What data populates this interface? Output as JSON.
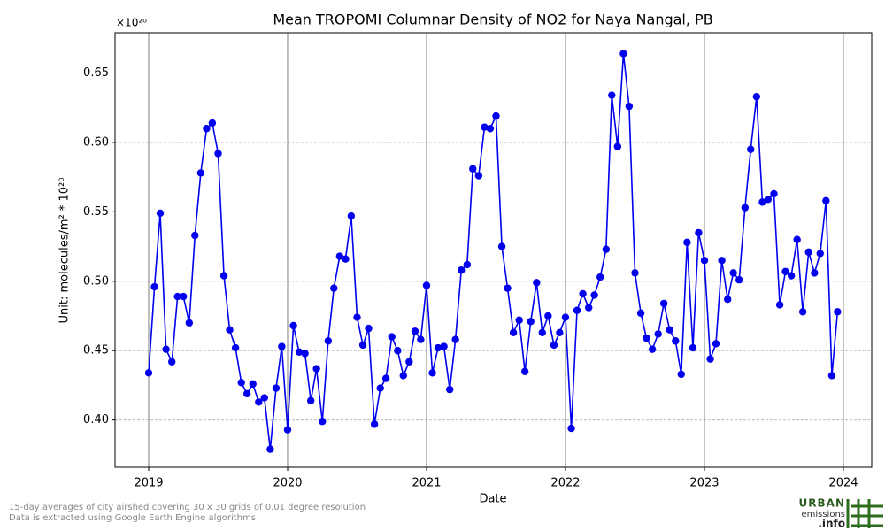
{
  "chart_data": {
    "type": "line",
    "title": "Mean TROPOMI Columnar Density of NO2 for Naya Nangal, PB",
    "x_label": "Date",
    "y_label": "Unit: molecules/m² * 10²⁰",
    "offset_label": "×10²⁰",
    "color": "#0000ee",
    "grid": true,
    "xlim": [
      2018.758,
      2024.204
    ],
    "ylim": [
      0.366,
      0.679
    ],
    "xticks": [
      2019,
      2020,
      2021,
      2022,
      2023,
      2024
    ],
    "yticks": [
      {
        "value": 0.4,
        "label": "0.40"
      },
      {
        "value": 0.45,
        "label": "0.45"
      },
      {
        "value": 0.5,
        "label": "0.50"
      },
      {
        "value": 0.55,
        "label": "0.55"
      },
      {
        "value": 0.6,
        "label": "0.60"
      },
      {
        "value": 0.65,
        "label": "0.65"
      }
    ],
    "x": [
      2019,
      2019.042,
      2019.083,
      2019.125,
      2019.167,
      2019.208,
      2019.25,
      2019.292,
      2019.333,
      2019.375,
      2019.417,
      2019.458,
      2019.5,
      2019.542,
      2019.583,
      2019.625,
      2019.667,
      2019.708,
      2019.75,
      2019.792,
      2019.833,
      2019.875,
      2019.917,
      2019.958,
      2020,
      2020.042,
      2020.083,
      2020.125,
      2020.167,
      2020.208,
      2020.25,
      2020.292,
      2020.333,
      2020.375,
      2020.417,
      2020.458,
      2020.5,
      2020.542,
      2020.583,
      2020.625,
      2020.667,
      2020.708,
      2020.75,
      2020.792,
      2020.833,
      2020.875,
      2020.917,
      2020.958,
      2021,
      2021.042,
      2021.083,
      2021.125,
      2021.167,
      2021.208,
      2021.25,
      2021.292,
      2021.333,
      2021.375,
      2021.417,
      2021.458,
      2021.5,
      2021.542,
      2021.583,
      2021.625,
      2021.667,
      2021.708,
      2021.75,
      2021.792,
      2021.833,
      2021.875,
      2021.917,
      2021.958,
      2022,
      2022.042,
      2022.083,
      2022.125,
      2022.167,
      2022.208,
      2022.25,
      2022.292,
      2022.333,
      2022.375,
      2022.417,
      2022.458,
      2022.5,
      2022.542,
      2022.583,
      2022.625,
      2022.667,
      2022.708,
      2022.75,
      2022.792,
      2022.833,
      2022.875,
      2022.917,
      2022.958,
      2023,
      2023.042,
      2023.083,
      2023.125,
      2023.167,
      2023.208,
      2023.25,
      2023.292,
      2023.333,
      2023.375,
      2023.417,
      2023.458,
      2023.5,
      2023.542,
      2023.583,
      2023.625,
      2023.667,
      2023.708,
      2023.75,
      2023.792,
      2023.833,
      2023.875,
      2023.917,
      2023.958
    ],
    "values": [
      0.434,
      0.496,
      0.549,
      0.451,
      0.442,
      0.489,
      0.489,
      0.47,
      0.533,
      0.578,
      0.61,
      0.614,
      0.592,
      0.504,
      0.465,
      0.452,
      0.427,
      0.419,
      0.426,
      0.413,
      0.416,
      0.379,
      0.423,
      0.453,
      0.393,
      0.468,
      0.449,
      0.448,
      0.414,
      0.437,
      0.399,
      0.457,
      0.495,
      0.518,
      0.516,
      0.547,
      0.474,
      0.454,
      0.466,
      0.397,
      0.423,
      0.43,
      0.46,
      0.45,
      0.432,
      0.442,
      0.464,
      0.458,
      0.497,
      0.434,
      0.452,
      0.453,
      0.422,
      0.458,
      0.508,
      0.512,
      0.581,
      0.576,
      0.611,
      0.61,
      0.619,
      0.525,
      0.495,
      0.463,
      0.472,
      0.435,
      0.471,
      0.499,
      0.463,
      0.475,
      0.454,
      0.463,
      0.474,
      0.394,
      0.479,
      0.491,
      0.481,
      0.49,
      0.503,
      0.523,
      0.634,
      0.597,
      0.664,
      0.626,
      0.506,
      0.477,
      0.459,
      0.451,
      0.462,
      0.484,
      0.465,
      0.457,
      0.433,
      0.528,
      0.452,
      0.535,
      0.515,
      0.444,
      0.455,
      0.515,
      0.487,
      0.506,
      0.501,
      0.553,
      0.595,
      0.633,
      0.557,
      0.559,
      0.563,
      0.483,
      0.507,
      0.504,
      0.53,
      0.478,
      0.521,
      0.506,
      0.52,
      0.558,
      0.432,
      0.478
    ]
  },
  "footnote": [
    "15-day averages of city airshed covering 30 x 30 grids of 0.01 degree resolution",
    "Data is extracted using Google Earth Engine algorithms"
  ],
  "logo": {
    "line1": "URBAN",
    "line2": "emissions",
    "line3": ".info"
  }
}
